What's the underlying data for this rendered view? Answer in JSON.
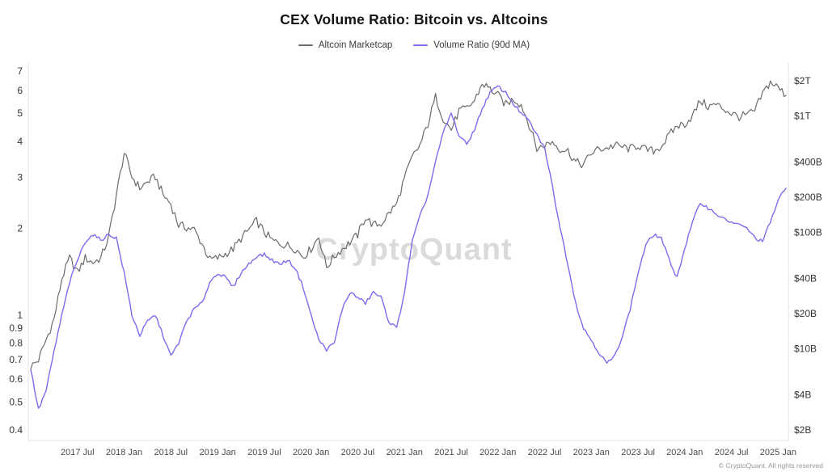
{
  "page": {
    "title": "CEX Volume Ratio: Bitcoin vs. Altcoins"
  },
  "chart_data": {
    "type": "line",
    "title": "CEX Volume Ratio: Bitcoin vs. Altcoins",
    "watermark": "CryptoQuant",
    "footer": "© CryptoQuant. All rights reserved",
    "grid": false,
    "legend_position": "top",
    "x_start_month": "2017-01",
    "x_end_month": "2025-02",
    "x_tick_labels": [
      "2017 Jul",
      "2018 Jan",
      "2018 Jul",
      "2019 Jan",
      "2019 Jul",
      "2020 Jan",
      "2020 Jul",
      "2021 Jan",
      "2021 Jul",
      "2022 Jan",
      "2022 Jul",
      "2023 Jan",
      "2023 Jul",
      "2024 Jan",
      "2024 Jul",
      "2025 Jan"
    ],
    "x_tick_month_indices": [
      6,
      12,
      18,
      24,
      30,
      36,
      42,
      48,
      54,
      60,
      66,
      72,
      78,
      84,
      90,
      96
    ],
    "left_axis": {
      "label_for": "Volume Ratio (90d MA)",
      "scale": "log",
      "range": [
        0.4,
        7
      ],
      "ticks": [
        7,
        6,
        5,
        4,
        3,
        2,
        1,
        0.9,
        0.8,
        0.7,
        0.6,
        0.5,
        0.4
      ]
    },
    "right_axis": {
      "label_for": "Altcoin Marketcap",
      "scale": "log",
      "tick_labels": [
        "$2T",
        "$1T",
        "$400B",
        "$200B",
        "$100B",
        "$40B",
        "$20B",
        "$10B",
        "$4B",
        "$2B"
      ],
      "tick_values_billions": [
        2000,
        1000,
        400,
        200,
        100,
        40,
        20,
        10,
        4,
        2
      ]
    },
    "series": [
      {
        "name": "Altcoin Marketcap",
        "axis": "right",
        "unit": "USD billions",
        "color": "#6b6b6b",
        "values": [
          7,
          8,
          12,
          18,
          40,
          60,
          45,
          60,
          55,
          60,
          90,
          210,
          480,
          300,
          240,
          270,
          300,
          210,
          175,
          115,
          110,
          105,
          80,
          58,
          60,
          65,
          72,
          88,
          105,
          125,
          100,
          85,
          80,
          77,
          72,
          62,
          72,
          92,
          50,
          62,
          72,
          82,
          95,
          135,
          115,
          118,
          145,
          175,
          290,
          440,
          560,
          850,
          1450,
          950,
          760,
          1100,
          1150,
          1350,
          1900,
          1700,
          1500,
          1250,
          1400,
          1250,
          850,
          520,
          560,
          600,
          520,
          500,
          400,
          380,
          480,
          520,
          530,
          560,
          540,
          520,
          560,
          510,
          500,
          550,
          680,
          820,
          850,
          1000,
          1350,
          1200,
          1250,
          1150,
          1050,
          980,
          1020,
          1100,
          1550,
          1950,
          1750,
          1500
        ]
      },
      {
        "name": "Volume Ratio (90d MA)",
        "axis": "left",
        "unit": "ratio",
        "color": "#7b6cf0",
        "values": [
          0.65,
          0.47,
          0.55,
          0.75,
          1.0,
          1.3,
          1.55,
          1.8,
          1.9,
          1.82,
          1.9,
          1.85,
          1.4,
          1.0,
          0.85,
          0.95,
          1.0,
          0.85,
          0.72,
          0.8,
          0.95,
          1.05,
          1.1,
          1.3,
          1.4,
          1.35,
          1.25,
          1.4,
          1.5,
          1.6,
          1.62,
          1.55,
          1.5,
          1.55,
          1.45,
          1.25,
          1.0,
          0.82,
          0.76,
          0.8,
          1.05,
          1.2,
          1.15,
          1.1,
          1.2,
          1.15,
          0.95,
          0.9,
          1.2,
          1.8,
          2.2,
          2.6,
          3.4,
          4.3,
          5.0,
          4.2,
          3.9,
          4.4,
          5.2,
          5.9,
          6.2,
          5.9,
          5.4,
          5.0,
          4.7,
          4.2,
          3.8,
          2.8,
          2.0,
          1.5,
          1.1,
          0.9,
          0.82,
          0.74,
          0.68,
          0.72,
          0.85,
          1.05,
          1.4,
          1.75,
          1.9,
          1.85,
          1.55,
          1.35,
          1.7,
          2.1,
          2.45,
          2.35,
          2.25,
          2.15,
          2.1,
          2.05,
          2.0,
          1.85,
          1.8,
          2.1,
          2.5,
          2.75
        ]
      }
    ]
  }
}
